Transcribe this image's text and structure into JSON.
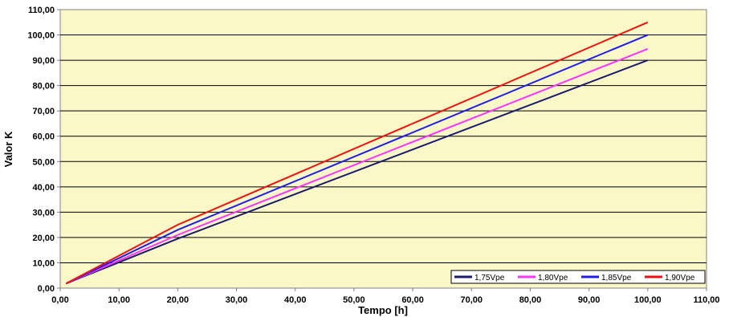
{
  "chart_data": {
    "type": "line",
    "title": "",
    "xlabel": "Tempo [h]",
    "ylabel": "Valor K",
    "xlim": [
      0,
      110
    ],
    "ylim": [
      0,
      110
    ],
    "xticks": [
      0,
      10,
      20,
      30,
      40,
      50,
      60,
      70,
      80,
      90,
      100,
      110
    ],
    "yticks": [
      0,
      10,
      20,
      30,
      40,
      50,
      60,
      70,
      80,
      90,
      100,
      110
    ],
    "xtick_labels": [
      "0,00",
      "10,00",
      "20,00",
      "30,00",
      "40,00",
      "50,00",
      "60,00",
      "70,00",
      "80,00",
      "90,00",
      "100,00",
      "110,00"
    ],
    "ytick_labels": [
      "0,00",
      "10,00",
      "20,00",
      "30,00",
      "40,00",
      "50,00",
      "60,00",
      "70,00",
      "80,00",
      "90,00",
      "100,00",
      "110,00"
    ],
    "grid": "horizontal",
    "legend_position": "bottom-right",
    "background": "#fbf8c8",
    "series": [
      {
        "name": "1,75Vpe",
        "color": "#1a1a6e",
        "x": [
          1,
          20,
          100
        ],
        "y": [
          1.8,
          19.5,
          90
        ]
      },
      {
        "name": "1,80Vpe",
        "color": "#ff33ff",
        "x": [
          1,
          20,
          100
        ],
        "y": [
          1.8,
          21,
          94.5
        ]
      },
      {
        "name": "1,85Vpe",
        "color": "#1f1fe8",
        "x": [
          1,
          20,
          100
        ],
        "y": [
          1.8,
          23,
          100
        ]
      },
      {
        "name": "1,90Vpe",
        "color": "#ee1111",
        "x": [
          1,
          20,
          100
        ],
        "y": [
          1.8,
          25,
          105
        ]
      }
    ]
  }
}
